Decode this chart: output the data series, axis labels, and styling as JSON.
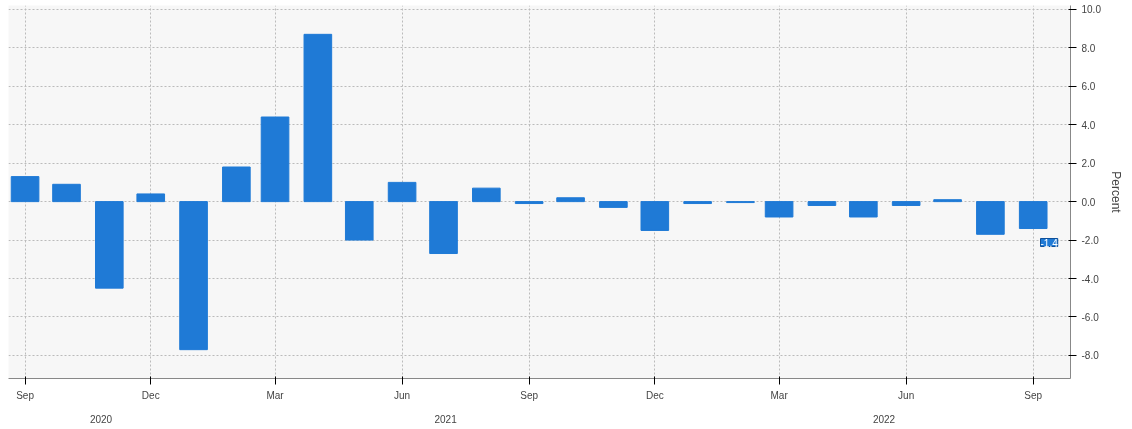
{
  "chart_data": {
    "type": "bar",
    "ylabel": "Percent",
    "x": [
      "2020-09",
      "2020-10",
      "2020-11",
      "2020-12",
      "2021-01",
      "2021-02",
      "2021-03",
      "2021-04",
      "2021-05",
      "2021-06",
      "2021-07",
      "2021-08",
      "2021-09",
      "2021-10",
      "2021-11",
      "2021-12",
      "2022-01",
      "2022-02",
      "2022-03",
      "2022-04",
      "2022-05",
      "2022-06",
      "2022-07",
      "2022-08",
      "2022-09"
    ],
    "values": [
      1.3,
      0.9,
      -4.5,
      0.4,
      -7.7,
      1.8,
      4.4,
      8.7,
      -2.0,
      1.0,
      -2.7,
      0.7,
      -0.1,
      0.2,
      -0.3,
      -1.5,
      -0.1,
      -0.05,
      -0.8,
      -0.2,
      -0.8,
      -0.2,
      0.1,
      -1.7,
      -1.4
    ],
    "value_labels": [
      null,
      null,
      null,
      null,
      null,
      null,
      null,
      null,
      null,
      null,
      null,
      null,
      null,
      null,
      null,
      null,
      null,
      null,
      null,
      null,
      null,
      null,
      null,
      null,
      "-1.4"
    ],
    "color": "#1f7ad6",
    "xlim": [
      "2020-08-20",
      "2022-09-28"
    ],
    "xticks": [
      {
        "value": "2020-09",
        "label": "Sep"
      },
      {
        "value": "2020-12",
        "label": "Dec"
      },
      {
        "value": "2021-03",
        "label": "Mar"
      },
      {
        "value": "2021-06",
        "label": "Jun"
      },
      {
        "value": "2021-09",
        "label": "Sep"
      },
      {
        "value": "2021-12",
        "label": "Dec"
      },
      {
        "value": "2022-03",
        "label": "Mar"
      },
      {
        "value": "2022-06",
        "label": "Jun"
      },
      {
        "value": "2022-09",
        "label": "Sep"
      }
    ],
    "ylim": [
      -9.2,
      10.2
    ],
    "yticks": [
      {
        "value": 10,
        "label": "10.0"
      },
      {
        "value": 8,
        "label": "8.0"
      },
      {
        "value": 6,
        "label": "6.0"
      },
      {
        "value": 4,
        "label": "4.0"
      },
      {
        "value": 2,
        "label": "2.0"
      },
      {
        "value": 0,
        "label": "0.0"
      },
      {
        "value": -2,
        "label": "-2.0"
      },
      {
        "value": -4,
        "label": "-4.0"
      },
      {
        "value": -6,
        "label": "-6.0"
      },
      {
        "value": -8,
        "label": "-8.0"
      }
    ],
    "annotations": [
      "2020",
      "2021",
      "2022"
    ],
    "grid": true
  }
}
